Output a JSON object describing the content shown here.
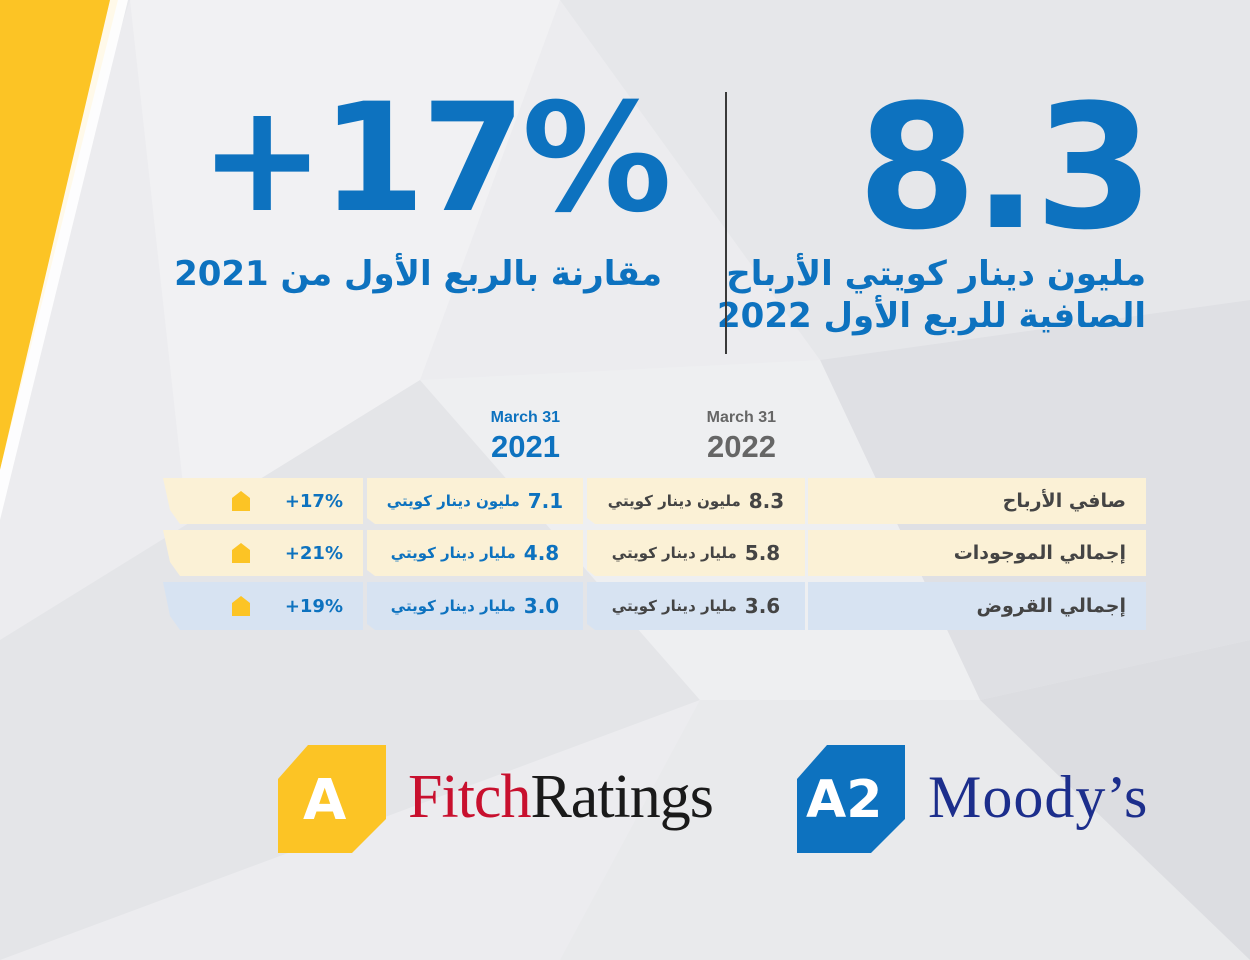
{
  "hero": {
    "main_value": "8.3",
    "main_caption_line1": "مليون دينار كويتي الأرباح",
    "main_caption_line2": "الصافية للربع الأول 2022",
    "growth_value": "+17%",
    "growth_caption": "مقارنة بالربع الأول من 2021"
  },
  "table": {
    "columns": [
      {
        "small": "March 31",
        "year": "2022"
      },
      {
        "small": "March 31",
        "year": "2021"
      }
    ],
    "rows": [
      {
        "label": "صافي الأرباح",
        "v2022_num": "8.3",
        "v2022_unit": "مليون دينار كويتي",
        "v2021_num": "7.1",
        "v2021_unit": "مليون دينار كويتي",
        "change": "+17%"
      },
      {
        "label": "إجمالي الموجودات",
        "v2022_num": "5.8",
        "v2022_unit": "مليار دينار كويتي",
        "v2021_num": "4.8",
        "v2021_unit": "مليار دينار كويتي",
        "change": "+21%"
      },
      {
        "label": "إجمالي القروض",
        "v2022_num": "3.6",
        "v2022_unit": "مليار دينار كويتي",
        "v2021_num": "3.0",
        "v2021_unit": "مليار دينار كويتي",
        "change": "+19%"
      }
    ]
  },
  "ratings": {
    "fitch_grade": "A",
    "fitch_brand_part1": "Fitch",
    "fitch_brand_part2": "Ratings",
    "moodys_grade": "A2",
    "moodys_brand": "Moody’s"
  },
  "colors": {
    "accent_blue": "#0d72bf",
    "accent_yellow": "#fcc425",
    "row_yellow": "#fbf1d6",
    "row_blue": "#d7e3f2"
  }
}
